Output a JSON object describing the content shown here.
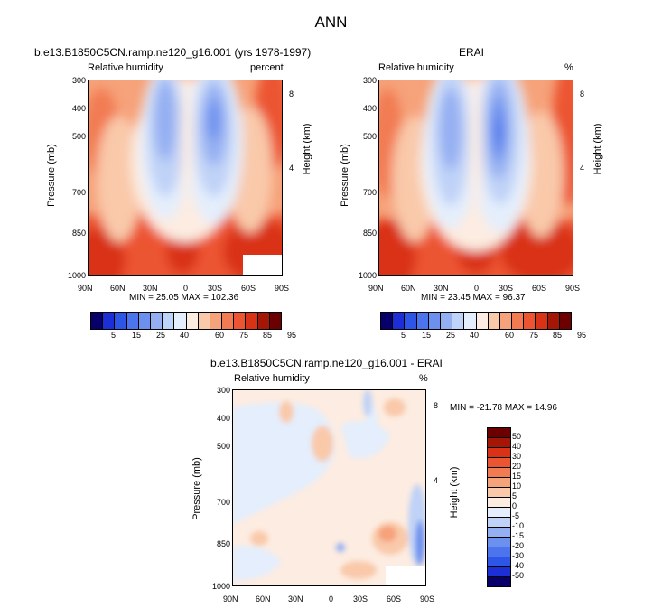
{
  "page_title": "ANN",
  "panel1": {
    "title": "b.e13.B1850C5CN.ramp.ne120_g16.001 (yrs 1978-1997)",
    "left_label": "Relative humidity",
    "right_label": "percent",
    "ylabel": "Pressure (mb)",
    "y2label": "Height (km)",
    "stats": "MIN = 25.05  MAX = 102.36"
  },
  "panel2": {
    "title": "ERAI",
    "left_label": "Relative humidity",
    "right_label": "%",
    "ylabel": "Pressure (mb)",
    "y2label": "Height (km)",
    "stats": "MIN = 23.45  MAX = 96.37"
  },
  "panel3": {
    "title": "b.e13.B1850C5CN.ramp.ne120_g16.001 - ERAI",
    "left_label": "Relative humidity",
    "right_label": "%",
    "ylabel": "Pressure (mb)",
    "y2label": "Height (km)",
    "stats": "MIN = -21.78  MAX =  14.96"
  },
  "chart_data": [
    {
      "type": "heatmap",
      "name": "model",
      "x_ticks": [
        "90N",
        "60N",
        "30N",
        "0",
        "30S",
        "60S",
        "90S"
      ],
      "y_ticks": [
        "300",
        "400",
        "500",
        "700",
        "850",
        "1000"
      ],
      "y2_ticks": [
        "8",
        "4"
      ],
      "levels": [
        5,
        10,
        15,
        20,
        25,
        30,
        40,
        50,
        60,
        70,
        75,
        80,
        85,
        90,
        95
      ],
      "colorbar_labels": [
        "5",
        "15",
        "25",
        "40",
        "60",
        "75",
        "85",
        "95"
      ],
      "min": 25.05,
      "max": 102.36
    },
    {
      "type": "heatmap",
      "name": "obs",
      "x_ticks": [
        "90N",
        "60N",
        "30N",
        "0",
        "30S",
        "60S",
        "90S"
      ],
      "y_ticks": [
        "300",
        "400",
        "500",
        "700",
        "850",
        "1000"
      ],
      "y2_ticks": [
        "8",
        "4"
      ],
      "levels": [
        5,
        10,
        15,
        20,
        25,
        30,
        40,
        50,
        60,
        70,
        75,
        80,
        85,
        90,
        95
      ],
      "colorbar_labels": [
        "5",
        "15",
        "25",
        "40",
        "60",
        "75",
        "85",
        "95"
      ],
      "min": 23.45,
      "max": 96.37
    },
    {
      "type": "heatmap",
      "name": "difference",
      "x_ticks": [
        "90N",
        "60N",
        "30N",
        "0",
        "30S",
        "60S",
        "90S"
      ],
      "y_ticks": [
        "300",
        "400",
        "500",
        "700",
        "850",
        "1000"
      ],
      "y2_ticks": [
        "8",
        "4"
      ],
      "levels": [
        50,
        40,
        30,
        20,
        15,
        10,
        5,
        0,
        -5,
        -10,
        -15,
        -20,
        -30,
        -40,
        -50
      ],
      "colorbar_labels": [
        "50",
        "40",
        "30",
        "20",
        "15",
        "10",
        "5",
        "0",
        "-5",
        "-10",
        "-15",
        "-20",
        "-30",
        "-40",
        "-50"
      ],
      "min": -21.78,
      "max": 14.96
    }
  ],
  "colors": {
    "palette": [
      "#08006a",
      "#1c2fd6",
      "#2d55e6",
      "#4c74ec",
      "#6c90ee",
      "#94aff2",
      "#bfd2f7",
      "#e4eefc",
      "#fdece1",
      "#f9c9aa",
      "#f6a27a",
      "#f27b52",
      "#ec5531",
      "#d93216",
      "#a51607",
      "#6c0000"
    ],
    "white_patch": "#ffffff"
  }
}
